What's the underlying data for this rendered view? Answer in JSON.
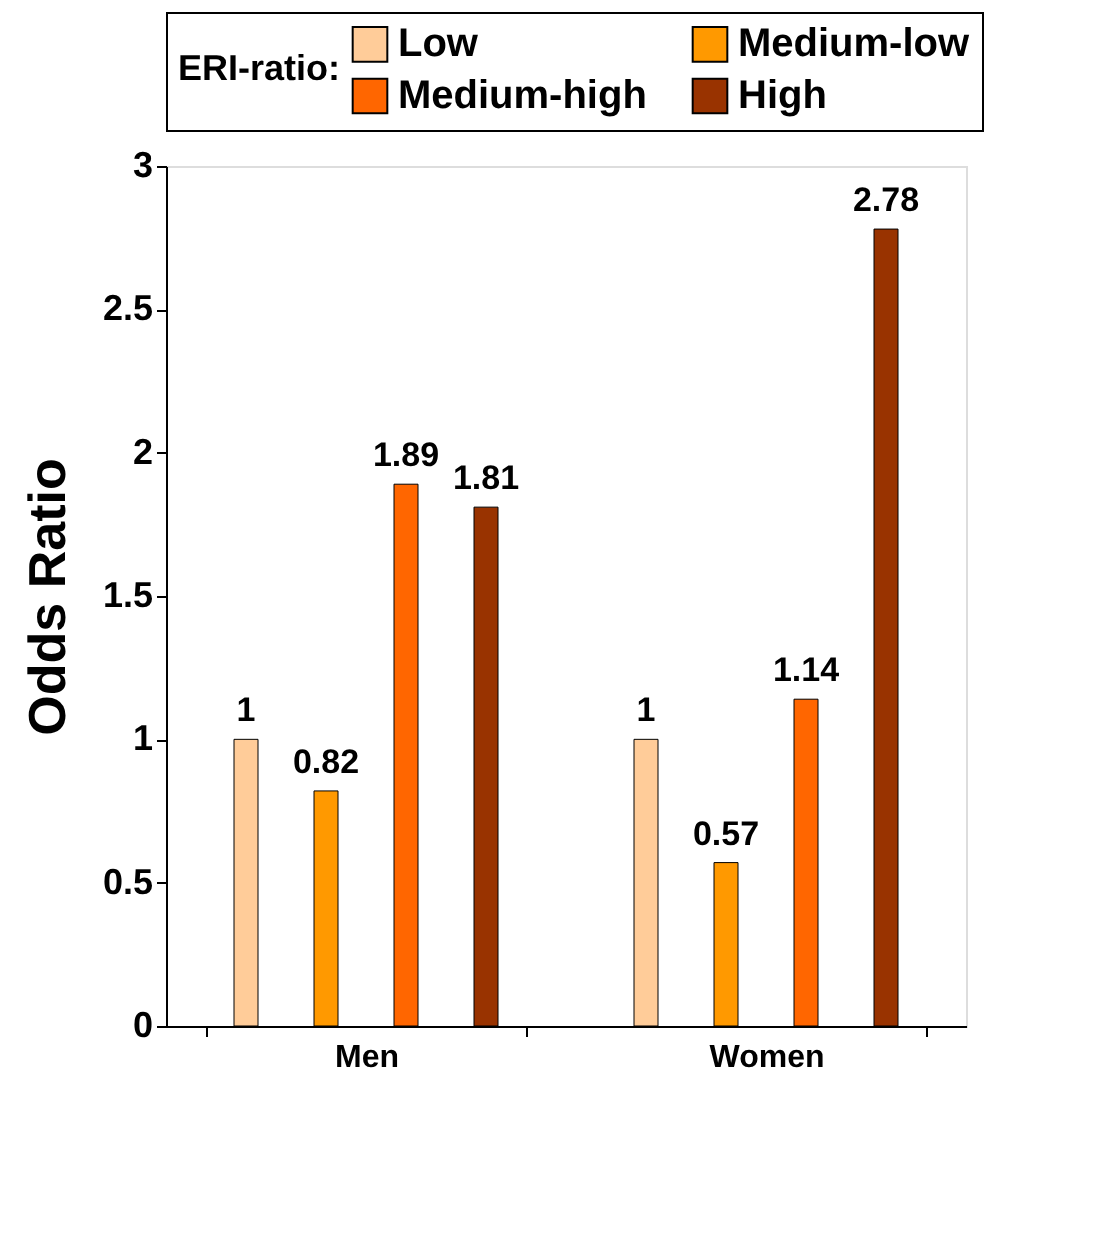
{
  "chart_data": {
    "type": "bar",
    "ylabel": "Odds Ratio",
    "legend_title": "ERI-ratio:",
    "categories": [
      "Men",
      "Women"
    ],
    "series": [
      {
        "name": "Low",
        "color": "#ffcc99",
        "values": [
          1,
          1
        ]
      },
      {
        "name": "Medium-low",
        "color": "#ff9900",
        "values": [
          0.82,
          0.57
        ]
      },
      {
        "name": "Medium-high",
        "color": "#ff6600",
        "values": [
          1.89,
          1.14
        ]
      },
      {
        "name": "High",
        "color": "#993300",
        "values": [
          1.81,
          2.78
        ]
      }
    ],
    "ylim": [
      0,
      3
    ],
    "yticks": [
      0,
      0.5,
      1,
      1.5,
      2,
      2.5,
      3
    ],
    "grid": false,
    "legend": "top",
    "data_labels": true
  }
}
